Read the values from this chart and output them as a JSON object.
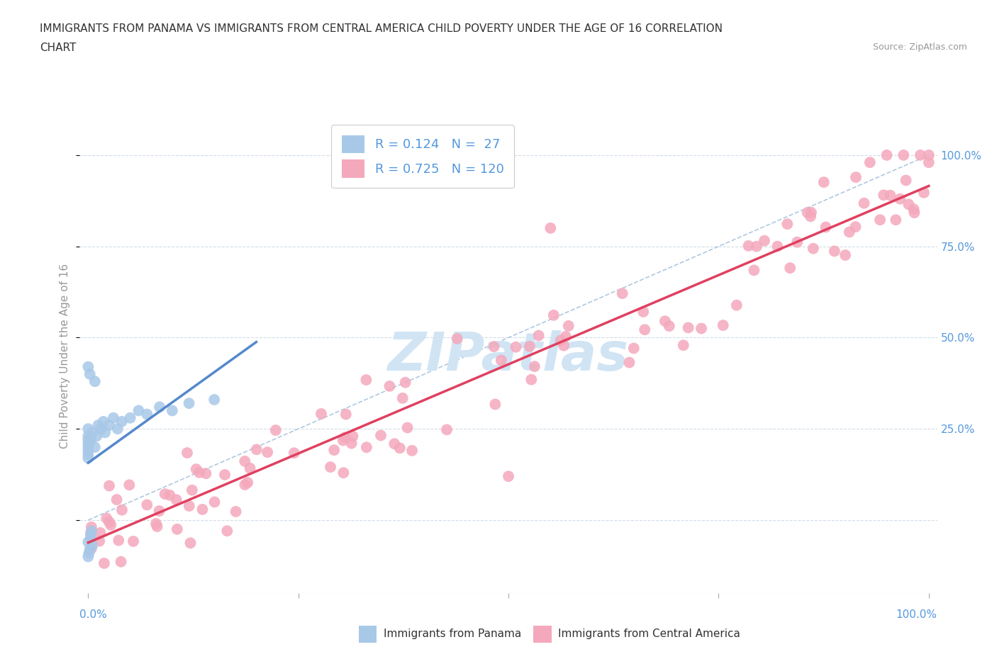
{
  "title_line1": "IMMIGRANTS FROM PANAMA VS IMMIGRANTS FROM CENTRAL AMERICA CHILD POVERTY UNDER THE AGE OF 16 CORRELATION",
  "title_line2": "CHART",
  "source": "Source: ZipAtlas.com",
  "ylabel": "Child Poverty Under the Age of 16",
  "legend_panama_R": 0.124,
  "legend_panama_N": 27,
  "legend_central_R": 0.725,
  "legend_central_N": 120,
  "panama_color": "#a8c8e8",
  "central_color": "#f4a8bc",
  "panama_line_color": "#5588cc",
  "central_line_color": "#e04060",
  "diagonal_color": "#b0c8e0",
  "watermark_color": "#d0e4f4",
  "background_color": "#ffffff",
  "grid_color": "#d0dce8",
  "label_color": "#5599dd",
  "title_color": "#333333",
  "source_color": "#999999",
  "ylabel_color": "#999999"
}
